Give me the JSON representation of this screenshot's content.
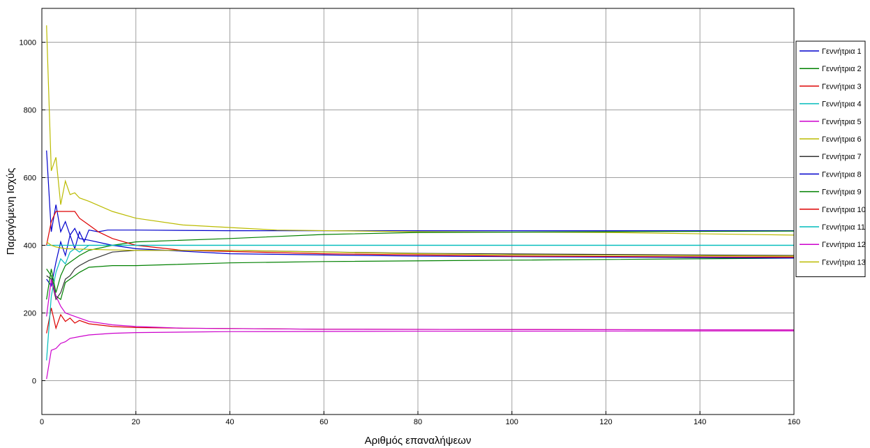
{
  "chart_data": {
    "type": "line",
    "xlabel": "Αριθμός επαναλήψεων",
    "ylabel": "Παραγόμενη Ισχύς",
    "xlim": [
      0,
      160
    ],
    "ylim": [
      -100,
      1100
    ],
    "xticks": [
      0,
      20,
      40,
      60,
      80,
      100,
      120,
      140,
      160
    ],
    "yticks": [
      0,
      200,
      400,
      600,
      800,
      1000
    ],
    "grid": true,
    "legend_position": "right",
    "series": [
      {
        "name": "Γεννήτρια 1",
        "color": "#0000cc",
        "points": [
          [
            1,
            300
          ],
          [
            2,
            280
          ],
          [
            3,
            350
          ],
          [
            4,
            410
          ],
          [
            5,
            370
          ],
          [
            6,
            430
          ],
          [
            7,
            390
          ],
          [
            8,
            440
          ],
          [
            9,
            410
          ],
          [
            10,
            445
          ],
          [
            12,
            440
          ],
          [
            14,
            445
          ],
          [
            20,
            445
          ],
          [
            40,
            443
          ],
          [
            80,
            443
          ],
          [
            160,
            443
          ]
        ]
      },
      {
        "name": "Γεννήτρια 2",
        "color": "#008000",
        "points": [
          [
            1,
            330
          ],
          [
            2,
            310
          ],
          [
            3,
            250
          ],
          [
            4,
            240
          ],
          [
            5,
            290
          ],
          [
            6,
            300
          ],
          [
            8,
            320
          ],
          [
            10,
            335
          ],
          [
            15,
            340
          ],
          [
            20,
            340
          ],
          [
            40,
            348
          ],
          [
            60,
            352
          ],
          [
            100,
            356
          ],
          [
            160,
            362
          ]
        ]
      },
      {
        "name": "Γεννήτρια 3",
        "color": "#dd0000",
        "points": [
          [
            1,
            140
          ],
          [
            2,
            215
          ],
          [
            3,
            155
          ],
          [
            4,
            195
          ],
          [
            5,
            175
          ],
          [
            6,
            185
          ],
          [
            7,
            170
          ],
          [
            8,
            178
          ],
          [
            10,
            168
          ],
          [
            15,
            160
          ],
          [
            20,
            157
          ],
          [
            30,
            155
          ],
          [
            60,
            152
          ],
          [
            160,
            150
          ]
        ]
      },
      {
        "name": "Γεννήτρια 4",
        "color": "#00bbbb",
        "points": [
          [
            1,
            60
          ],
          [
            2,
            250
          ],
          [
            3,
            320
          ],
          [
            4,
            360
          ],
          [
            5,
            345
          ],
          [
            6,
            380
          ],
          [
            7,
            390
          ],
          [
            8,
            380
          ],
          [
            10,
            400
          ],
          [
            20,
            400
          ],
          [
            80,
            400
          ],
          [
            160,
            400
          ]
        ]
      },
      {
        "name": "Γεννήτρια 5",
        "color": "#cc00cc",
        "points": [
          [
            1,
            5
          ],
          [
            2,
            90
          ],
          [
            3,
            95
          ],
          [
            4,
            110
          ],
          [
            5,
            115
          ],
          [
            6,
            125
          ],
          [
            8,
            130
          ],
          [
            10,
            135
          ],
          [
            15,
            140
          ],
          [
            20,
            142
          ],
          [
            40,
            145
          ],
          [
            80,
            146
          ],
          [
            160,
            147
          ]
        ]
      },
      {
        "name": "Γεννήτρια 6",
        "color": "#bbbb00",
        "points": [
          [
            1,
            1050
          ],
          [
            2,
            620
          ],
          [
            3,
            660
          ],
          [
            4,
            520
          ],
          [
            5,
            590
          ],
          [
            6,
            550
          ],
          [
            7,
            555
          ],
          [
            8,
            540
          ],
          [
            10,
            530
          ],
          [
            15,
            500
          ],
          [
            20,
            480
          ],
          [
            30,
            460
          ],
          [
            50,
            445
          ],
          [
            80,
            440
          ],
          [
            120,
            438
          ],
          [
            160,
            430
          ]
        ]
      },
      {
        "name": "Γεννήτρια 7",
        "color": "#333333",
        "points": [
          [
            1,
            310
          ],
          [
            2,
            300
          ],
          [
            3,
            240
          ],
          [
            4,
            260
          ],
          [
            5,
            300
          ],
          [
            6,
            310
          ],
          [
            7,
            330
          ],
          [
            8,
            340
          ],
          [
            10,
            355
          ],
          [
            15,
            380
          ],
          [
            20,
            385
          ],
          [
            40,
            385
          ],
          [
            80,
            376
          ],
          [
            160,
            370
          ]
        ]
      },
      {
        "name": "Γεννήτρια 8",
        "color": "#0000cc",
        "points": [
          [
            1,
            680
          ],
          [
            2,
            440
          ],
          [
            3,
            520
          ],
          [
            4,
            440
          ],
          [
            5,
            470
          ],
          [
            6,
            430
          ],
          [
            7,
            450
          ],
          [
            8,
            420
          ],
          [
            10,
            415
          ],
          [
            15,
            400
          ],
          [
            20,
            390
          ],
          [
            40,
            375
          ],
          [
            80,
            368
          ],
          [
            160,
            362
          ]
        ]
      },
      {
        "name": "Γεννήτρια 9",
        "color": "#008000",
        "points": [
          [
            1,
            240
          ],
          [
            2,
            330
          ],
          [
            3,
            260
          ],
          [
            4,
            310
          ],
          [
            5,
            340
          ],
          [
            6,
            350
          ],
          [
            8,
            370
          ],
          [
            10,
            385
          ],
          [
            15,
            400
          ],
          [
            20,
            410
          ],
          [
            40,
            420
          ],
          [
            60,
            432
          ],
          [
            80,
            438
          ],
          [
            120,
            440
          ],
          [
            160,
            442
          ]
        ]
      },
      {
        "name": "Γεννήτρια 10",
        "color": "#dd0000",
        "points": [
          [
            1,
            400
          ],
          [
            2,
            470
          ],
          [
            3,
            500
          ],
          [
            4,
            500
          ],
          [
            5,
            500
          ],
          [
            6,
            500
          ],
          [
            7,
            500
          ],
          [
            8,
            480
          ],
          [
            10,
            460
          ],
          [
            12,
            440
          ],
          [
            15,
            420
          ],
          [
            20,
            400
          ],
          [
            30,
            385
          ],
          [
            60,
            375
          ],
          [
            100,
            368
          ],
          [
            160,
            365
          ]
        ]
      },
      {
        "name": "Γεννήτρια 11",
        "color": "#00bbbb",
        "points": [
          [
            1,
            400
          ],
          [
            2,
            400
          ],
          [
            5,
            400
          ],
          [
            10,
            400
          ],
          [
            20,
            400
          ],
          [
            80,
            400
          ],
          [
            160,
            400
          ]
        ]
      },
      {
        "name": "Γεννήτρια 12",
        "color": "#cc00cc",
        "points": [
          [
            1,
            190
          ],
          [
            2,
            300
          ],
          [
            3,
            250
          ],
          [
            4,
            220
          ],
          [
            5,
            200
          ],
          [
            6,
            195
          ],
          [
            8,
            185
          ],
          [
            10,
            175
          ],
          [
            15,
            165
          ],
          [
            20,
            160
          ],
          [
            30,
            155
          ],
          [
            60,
            152
          ],
          [
            160,
            150
          ]
        ]
      },
      {
        "name": "Γεννήτρια 13",
        "color": "#bbbb00",
        "points": [
          [
            1,
            410
          ],
          [
            2,
            400
          ],
          [
            3,
            395
          ],
          [
            5,
            390
          ],
          [
            10,
            388
          ],
          [
            20,
            385
          ],
          [
            40,
            385
          ],
          [
            60,
            380
          ],
          [
            80,
            375
          ],
          [
            100,
            372
          ],
          [
            160,
            368
          ]
        ]
      }
    ]
  }
}
